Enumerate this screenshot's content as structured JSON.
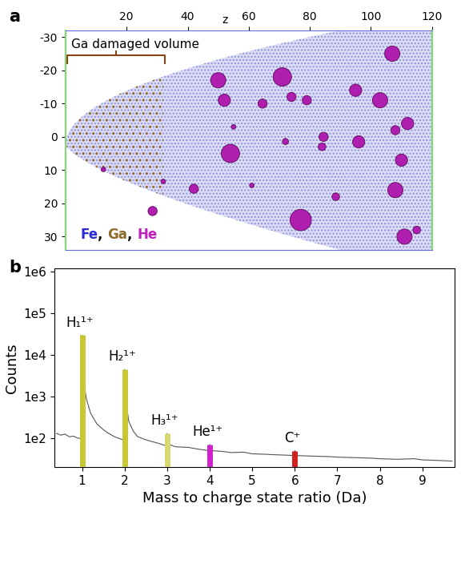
{
  "chart_data": [
    {
      "type": "scatter",
      "panel_label": "a",
      "x_label": "z",
      "xlim": [
        0,
        120
      ],
      "ylim": [
        34,
        -32
      ],
      "xticks": [
        20,
        40,
        60,
        80,
        100,
        120
      ],
      "yticks": [
        -30,
        -20,
        -10,
        0,
        10,
        20,
        30
      ],
      "annotations": [
        {
          "text": "Ga damaged volume"
        }
      ],
      "key": [
        {
          "text": "Fe",
          "color": "#2b2bd6"
        },
        {
          "text": "Ga",
          "color": "#8b6a2b"
        },
        {
          "text": "He",
          "color": "#c020c0"
        }
      ],
      "key_separator": ", ",
      "series": [
        {
          "name": "He",
          "color": "#b01eb0",
          "x": [
            12.4,
            32,
            28.5,
            42,
            54,
            55,
            50,
            52,
            61,
            64.5,
            71,
            74,
            72,
            77,
            84.5,
            84,
            79,
            88.5,
            96,
            95,
            103,
            107,
            108,
            112,
            110,
            108,
            111,
            115
          ],
          "y": [
            9.8,
            13.4,
            22.3,
            15.6,
            5,
            -3,
            -17,
            -11,
            14.6,
            -10,
            -18,
            -12,
            1.4,
            25,
            0,
            3,
            -11,
            18,
            1.5,
            -14,
            -11,
            -25,
            -2,
            -4,
            7,
            16,
            30,
            28
          ],
          "size": [
            1.5,
            1.5,
            3,
            3,
            6,
            1.5,
            5,
            4,
            1.5,
            3,
            6,
            3,
            2,
            7,
            3,
            2.5,
            3,
            2.5,
            4,
            4,
            5,
            5,
            3,
            4,
            4,
            5,
            5,
            2.5
          ]
        }
      ]
    },
    {
      "type": "line",
      "panel_label": "b",
      "log": "y",
      "x_label": "Mass to charge state ratio (Da)",
      "y_label": "Counts",
      "xlim": [
        0.35,
        9.75
      ],
      "ylim": [
        20,
        1200000
      ],
      "xticks": [
        1,
        2,
        3,
        4,
        5,
        6,
        7,
        8,
        9
      ],
      "yticks": [
        {
          "value": 100,
          "label": "1e2"
        },
        {
          "value": 1000,
          "label": "1e3"
        },
        {
          "value": 10000,
          "label": "1e4"
        },
        {
          "value": 100000,
          "label": "1e5"
        },
        {
          "value": 1000000,
          "label": "1e6"
        }
      ],
      "color": "#555555",
      "x": [
        0.4,
        0.5,
        0.6,
        0.7,
        0.8,
        0.9,
        0.97,
        1.0,
        1.02,
        1.05,
        1.1,
        1.2,
        1.35,
        1.5,
        1.6,
        1.75,
        1.85,
        1.98,
        2.0,
        2.03,
        2.1,
        2.2,
        2.3,
        2.45,
        2.6,
        2.8,
        2.98,
        3.0,
        3.05,
        3.2,
        3.5,
        3.7,
        3.98,
        4.0,
        4.05,
        4.3,
        4.5,
        4.8,
        5.0,
        5.3,
        5.5,
        5.8,
        5.98,
        6.0,
        6.05,
        6.4,
        6.8,
        7.0,
        7.4,
        7.8,
        8.0,
        8.4,
        8.8,
        9.0,
        9.4,
        9.7
      ],
      "values": [
        130,
        118,
        125,
        108,
        112,
        100,
        98,
        30000,
        8000,
        2000,
        900,
        400,
        220,
        160,
        135,
        110,
        100,
        90,
        4500,
        800,
        250,
        150,
        110,
        95,
        85,
        75,
        65,
        130,
        70,
        62,
        60,
        55,
        50,
        70,
        50,
        48,
        45,
        46,
        42,
        41,
        40,
        39,
        38,
        50,
        38,
        37,
        36,
        35,
        34,
        33,
        32,
        31,
        32,
        30,
        29,
        28
      ],
      "peaks": [
        {
          "label": "H₁¹⁺",
          "x": 1.0,
          "value": 30000,
          "color": "#c8c832"
        },
        {
          "label": "H₂¹⁺",
          "x": 2.0,
          "value": 4500,
          "color": "#c8c832"
        },
        {
          "label": "H₃¹⁺",
          "x": 3.0,
          "value": 130,
          "color": "#d8d870"
        },
        {
          "label": "He¹⁺",
          "x": 4.0,
          "value": 70,
          "color": "#d020d0"
        },
        {
          "label": "C⁺",
          "x": 6.0,
          "value": 50,
          "color": "#d02020"
        }
      ]
    }
  ]
}
